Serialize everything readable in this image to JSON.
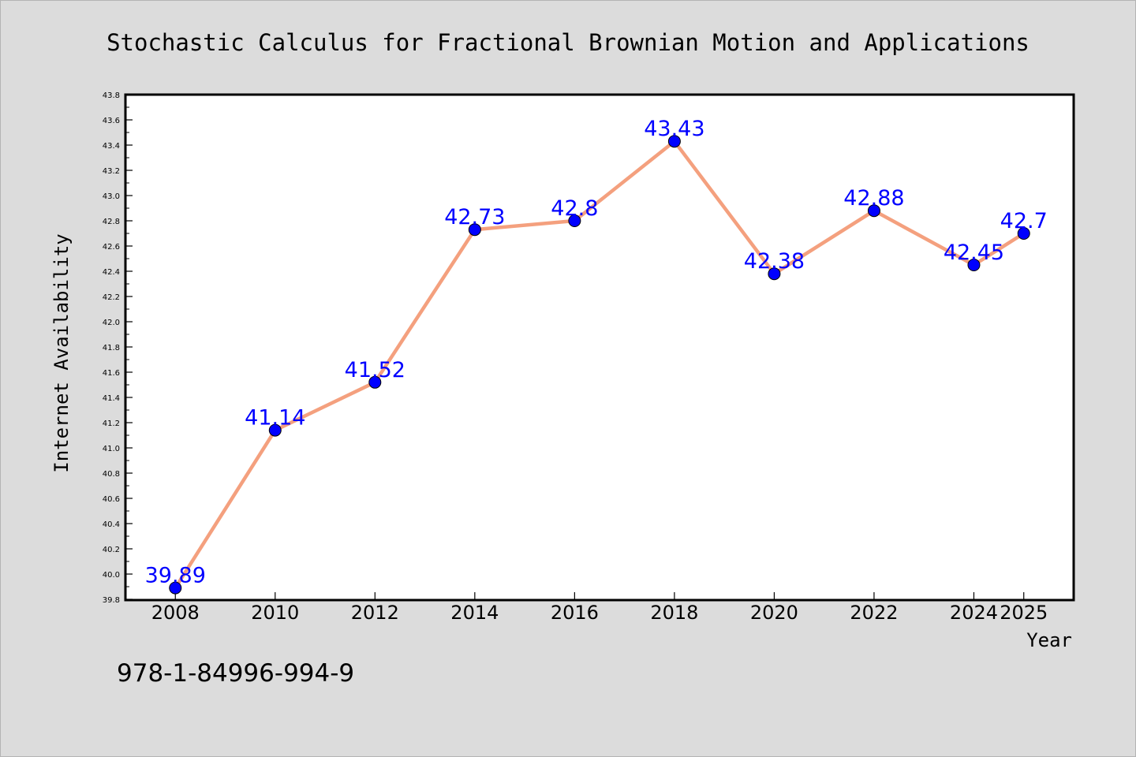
{
  "chart_data": {
    "type": "line",
    "title": "Stochastic Calculus for Fractional Brownian Motion and Applications",
    "xlabel": "Year",
    "ylabel": "Internet Availability",
    "x": [
      2008,
      2010,
      2012,
      2014,
      2016,
      2018,
      2020,
      2022,
      2024,
      2025
    ],
    "x_ticks": [
      "2008",
      "2010",
      "2012",
      "2014",
      "2016",
      "2018",
      "2020",
      "2022",
      "2024",
      "2025"
    ],
    "series": [
      {
        "values": [
          39.89,
          41.14,
          41.52,
          42.73,
          42.8,
          43.43,
          42.38,
          42.88,
          42.45,
          42.7
        ],
        "labels": [
          "39.89",
          "41.14",
          "41.52",
          "42.73",
          "42.8",
          "43.43",
          "42.38",
          "42.88",
          "42.45",
          "42.7"
        ]
      }
    ],
    "ylim": [
      39.8,
      43.8
    ],
    "y_ticks": [
      "39.8",
      "40.0",
      "40.2",
      "40.4",
      "40.6",
      "40.8",
      "41.0",
      "41.2",
      "41.4",
      "41.6",
      "41.8",
      "42.0",
      "42.2",
      "42.4",
      "42.6",
      "42.8",
      "43.0",
      "43.2",
      "43.4",
      "43.6",
      "43.8"
    ],
    "grid": false,
    "line_color": "#f4a07e",
    "marker_color": "#0000ff",
    "label_color": "#0000ff"
  },
  "footnote": "978-1-84996-994-9"
}
